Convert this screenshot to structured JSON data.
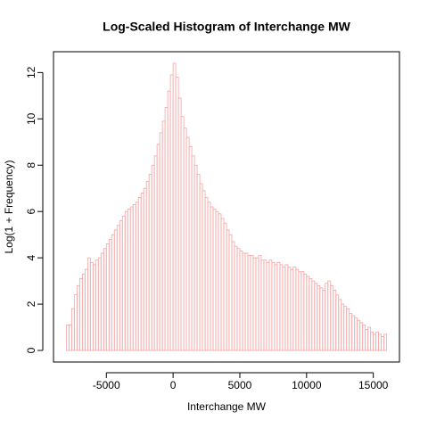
{
  "chart_data": {
    "type": "histogram",
    "title": "Log-Scaled Histogram of Interchange MW",
    "x_label": "Interchange MW",
    "y_label": "Log(1 + Frequency)",
    "color": "#f4a3a3",
    "bins": [
      -8000,
      -7800,
      -7600,
      -7400,
      -7200,
      -7000,
      -6800,
      -6600,
      -6400,
      -6200,
      -6000,
      -5800,
      -5600,
      -5400,
      -5200,
      -5000,
      -4800,
      -4600,
      -4400,
      -4200,
      -4000,
      -3800,
      -3600,
      -3400,
      -3200,
      -3000,
      -2800,
      -2600,
      -2400,
      -2200,
      -2000,
      -1800,
      -1600,
      -1400,
      -1200,
      -1000,
      -800,
      -600,
      -400,
      -200,
      0,
      200,
      400,
      600,
      800,
      1000,
      1200,
      1400,
      1600,
      1800,
      2000,
      2200,
      2400,
      2600,
      2800,
      3000,
      3200,
      3400,
      3600,
      3800,
      4000,
      4200,
      4400,
      4600,
      4800,
      5000,
      5200,
      5400,
      5600,
      5800,
      6000,
      6200,
      6400,
      6600,
      6800,
      7000,
      7200,
      7400,
      7600,
      7800,
      8000,
      8200,
      8400,
      8600,
      8800,
      9000,
      9200,
      9400,
      9600,
      9800,
      10000,
      10200,
      10400,
      10600,
      10800,
      11000,
      11200,
      11400,
      11600,
      11800,
      12000,
      12200,
      12400,
      12600,
      12800,
      13000,
      13200,
      13400,
      13600,
      13800,
      14000,
      14200,
      14400,
      14600,
      14800,
      15000,
      15200,
      15400,
      15600,
      15800,
      16000
    ],
    "values": [
      1.1,
      1.1,
      1.8,
      2.4,
      2.8,
      3.1,
      3.3,
      3.5,
      4.0,
      3.8,
      3.7,
      3.9,
      4.0,
      4.2,
      4.4,
      4.6,
      4.8,
      5.0,
      5.2,
      5.4,
      5.6,
      5.8,
      6.0,
      6.1,
      6.2,
      6.3,
      6.4,
      6.6,
      6.8,
      7.0,
      7.3,
      7.6,
      8.0,
      8.4,
      8.9,
      9.4,
      9.9,
      10.5,
      11.2,
      11.9,
      12.4,
      11.8,
      10.9,
      10.1,
      9.6,
      9.2,
      8.8,
      8.4,
      8.0,
      7.6,
      7.2,
      6.9,
      6.6,
      6.4,
      6.2,
      6.1,
      6.0,
      5.9,
      5.7,
      5.5,
      5.2,
      5.0,
      4.7,
      4.5,
      4.4,
      4.3,
      4.2,
      4.2,
      4.1,
      4.1,
      4.0,
      4.0,
      4.1,
      3.9,
      3.9,
      3.8,
      3.9,
      3.8,
      3.7,
      3.8,
      3.7,
      3.6,
      3.7,
      3.6,
      3.5,
      3.6,
      3.5,
      3.4,
      3.4,
      3.3,
      3.2,
      3.1,
      3.0,
      2.9,
      2.8,
      2.7,
      2.6,
      2.9,
      3.0,
      2.8,
      2.6,
      2.4,
      2.2,
      2.0,
      1.9,
      1.8,
      1.6,
      1.5,
      1.4,
      1.3,
      1.2,
      1.1,
      0.9,
      1.0,
      0.8,
      0.7,
      0.8,
      0.7,
      0.6,
      0.7
    ],
    "xlim": [
      -8960,
      16960
    ],
    "ylim": [
      -0.5,
      12.9
    ],
    "xticks": [
      -5000,
      0,
      5000,
      10000,
      15000
    ],
    "yticks": [
      0,
      2,
      4,
      6,
      8,
      10,
      12
    ]
  }
}
